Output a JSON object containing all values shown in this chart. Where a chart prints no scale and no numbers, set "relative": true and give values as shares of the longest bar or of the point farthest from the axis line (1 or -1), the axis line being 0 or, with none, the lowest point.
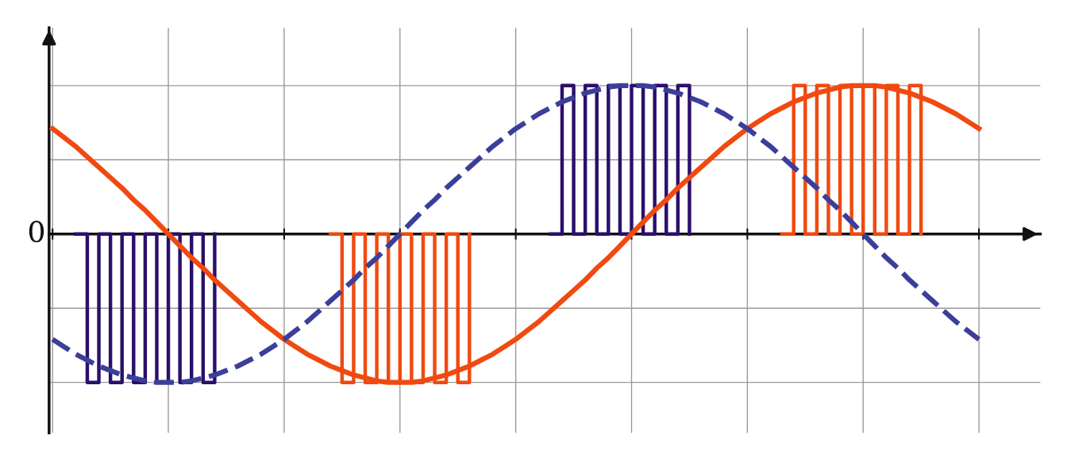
{
  "chart_data": {
    "type": "line",
    "relative": true,
    "grid": true,
    "legend": false,
    "annotations": [
      "0"
    ],
    "categories": [
      null,
      null,
      null,
      null,
      null,
      null,
      null,
      null,
      null,
      null,
      null,
      null,
      null,
      null,
      null,
      null,
      null,
      null,
      null,
      null,
      null,
      null,
      null,
      null,
      null,
      null,
      null,
      null,
      null,
      null,
      null,
      null,
      null,
      null,
      null,
      null,
      null,
      null,
      null,
      null,
      null,
      null,
      null,
      null,
      null,
      null,
      null,
      null,
      null,
      null,
      null,
      null,
      null,
      null,
      null,
      null,
      null,
      null,
      null,
      null,
      null,
      null,
      null,
      null,
      null,
      null,
      null,
      null,
      null,
      null,
      null,
      null,
      null,
      null,
      null,
      null,
      null,
      null,
      null,
      null,
      null
    ],
    "series": [
      {
        "color": "#f04a10",
        "line_style": "solid",
        "values": [
          0.71,
          0.65,
          0.59,
          0.52,
          0.45,
          0.38,
          0.31,
          0.23,
          0.16,
          0.08,
          0,
          -0.08,
          -0.16,
          -0.23,
          -0.31,
          -0.38,
          -0.45,
          -0.52,
          -0.59,
          -0.65,
          -0.71,
          -0.76,
          -0.81,
          -0.85,
          -0.89,
          -0.92,
          -0.95,
          -0.97,
          -0.99,
          -1,
          -1,
          -1,
          -0.99,
          -0.97,
          -0.95,
          -0.92,
          -0.89,
          -0.85,
          -0.81,
          -0.76,
          -0.71,
          -0.65,
          -0.59,
          -0.52,
          -0.45,
          -0.38,
          -0.31,
          -0.23,
          -0.16,
          -0.08,
          0,
          0.08,
          0.16,
          0.23,
          0.31,
          0.38,
          0.45,
          0.52,
          0.59,
          0.65,
          0.71,
          0.76,
          0.81,
          0.85,
          0.89,
          0.92,
          0.95,
          0.97,
          0.99,
          1,
          1,
          1,
          0.99,
          0.97,
          0.95,
          0.92,
          0.89,
          0.85,
          0.81,
          0.76,
          0.71
        ]
      },
      {
        "color": "#3b3f9a",
        "line_style": "dashed",
        "values": [
          -0.71,
          -0.76,
          -0.81,
          -0.85,
          -0.89,
          -0.92,
          -0.95,
          -0.97,
          -0.99,
          -1,
          -1,
          -1,
          -0.99,
          -0.97,
          -0.95,
          -0.92,
          -0.89,
          -0.85,
          -0.81,
          -0.76,
          -0.71,
          -0.65,
          -0.59,
          -0.52,
          -0.45,
          -0.38,
          -0.31,
          -0.23,
          -0.16,
          -0.08,
          0,
          0.08,
          0.16,
          0.23,
          0.31,
          0.38,
          0.45,
          0.52,
          0.59,
          0.65,
          0.71,
          0.76,
          0.81,
          0.85,
          0.89,
          0.92,
          0.95,
          0.97,
          0.99,
          1,
          1,
          1,
          0.99,
          0.97,
          0.95,
          0.92,
          0.89,
          0.85,
          0.81,
          0.76,
          0.71,
          0.65,
          0.59,
          0.52,
          0.45,
          0.38,
          0.31,
          0.23,
          0.16,
          0.08,
          0,
          -0.08,
          -0.16,
          -0.23,
          -0.31,
          -0.38,
          -0.45,
          -0.52,
          -0.59,
          -0.65,
          -0.71
        ]
      },
      {
        "type": "step",
        "color": "#2b0f6b",
        "line_style": "solid",
        "values": [
          null,
          null,
          0,
          -1,
          0,
          -1,
          0,
          -1,
          0,
          -1,
          0,
          -1,
          0,
          -1,
          0,
          null,
          null,
          null,
          null,
          null,
          null,
          null,
          null,
          null,
          null,
          null,
          null,
          null,
          null,
          null,
          null,
          null,
          null,
          null,
          null,
          null,
          null,
          null,
          null,
          null,
          null,
          null,
          null,
          0,
          1,
          0,
          1,
          0,
          1,
          0,
          1,
          0,
          1,
          0,
          1,
          0,
          null,
          null,
          null,
          null,
          null,
          null,
          null,
          null,
          null,
          null,
          null,
          null,
          null,
          null,
          null,
          null,
          null,
          null,
          null,
          null,
          null,
          null,
          null,
          null,
          null
        ]
      },
      {
        "type": "step",
        "color": "#f04a10",
        "line_style": "solid",
        "values": [
          null,
          null,
          null,
          null,
          null,
          null,
          null,
          null,
          null,
          null,
          null,
          null,
          null,
          null,
          null,
          null,
          null,
          null,
          null,
          null,
          null,
          null,
          null,
          null,
          0,
          -1,
          0,
          -1,
          0,
          -1,
          0,
          -1,
          0,
          -1,
          0,
          -1,
          0,
          null,
          null,
          null,
          null,
          null,
          null,
          null,
          null,
          null,
          null,
          null,
          null,
          null,
          null,
          null,
          null,
          null,
          null,
          null,
          null,
          null,
          null,
          null,
          null,
          null,
          null,
          0,
          1,
          0,
          1,
          0,
          1,
          0,
          1,
          0,
          1,
          0,
          1,
          0,
          null,
          null,
          null,
          null,
          null
        ]
      }
    ]
  }
}
